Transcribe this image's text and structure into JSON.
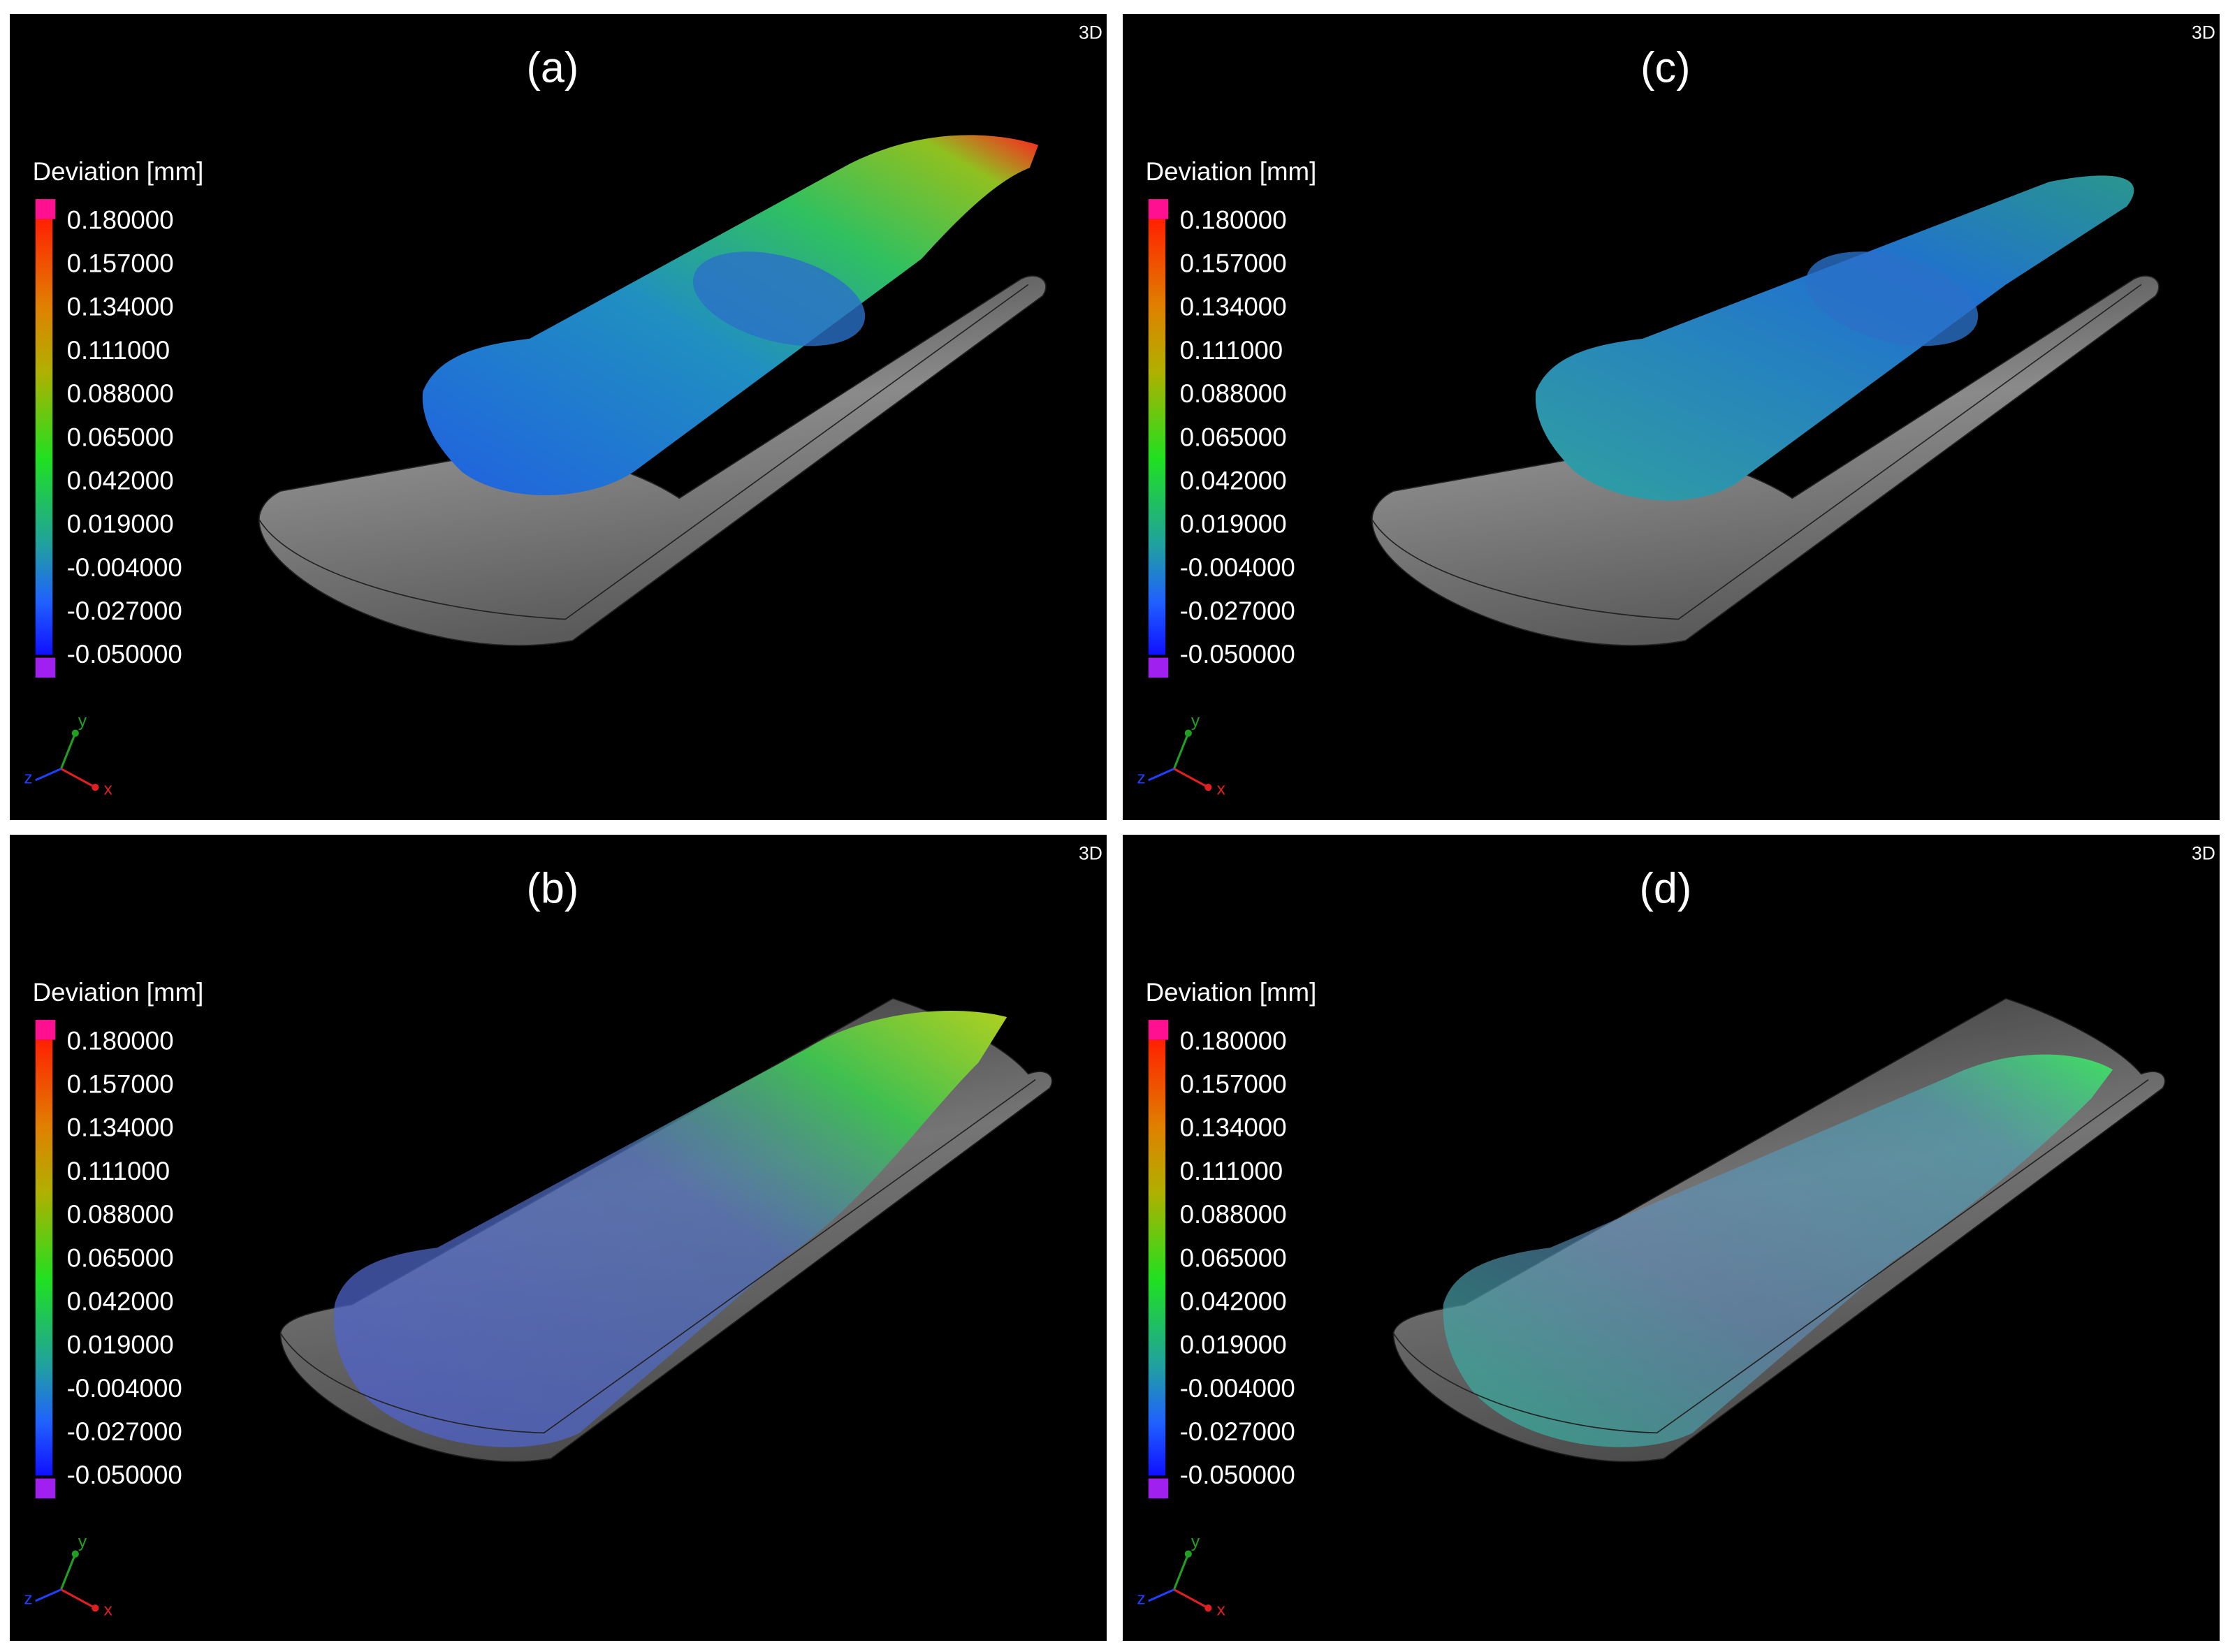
{
  "panels": [
    {
      "label": "(a)",
      "view": "3D",
      "legend": {
        "title": "Deviation [mm]",
        "values": [
          "0.180000",
          "0.157000",
          "0.134000",
          "0.111000",
          "0.088000",
          "0.065000",
          "0.042000",
          "0.019000",
          "-0.004000",
          "-0.027000",
          "-0.050000"
        ]
      },
      "axes": {
        "x": "x",
        "y": "y",
        "z": "z"
      }
    },
    {
      "label": "(c)",
      "view": "3D",
      "legend": {
        "title": "Deviation [mm]",
        "values": [
          "0.180000",
          "0.157000",
          "0.134000",
          "0.111000",
          "0.088000",
          "0.065000",
          "0.042000",
          "0.019000",
          "-0.004000",
          "-0.027000",
          "-0.050000"
        ]
      },
      "axes": {
        "x": "x",
        "y": "y",
        "z": "z"
      }
    },
    {
      "label": "(b)",
      "view": "3D",
      "legend": {
        "title": "Deviation [mm]",
        "values": [
          "0.180000",
          "0.157000",
          "0.134000",
          "0.111000",
          "0.088000",
          "0.065000",
          "0.042000",
          "0.019000",
          "-0.004000",
          "-0.027000",
          "-0.050000"
        ]
      },
      "axes": {
        "x": "x",
        "y": "y",
        "z": "z"
      }
    },
    {
      "label": "(d)",
      "view": "3D",
      "legend": {
        "title": "Deviation [mm]",
        "values": [
          "0.180000",
          "0.157000",
          "0.134000",
          "0.111000",
          "0.088000",
          "0.065000",
          "0.042000",
          "0.019000",
          "-0.004000",
          "-0.027000",
          "-0.050000"
        ]
      },
      "axes": {
        "x": "x",
        "y": "y",
        "z": "z"
      }
    }
  ]
}
